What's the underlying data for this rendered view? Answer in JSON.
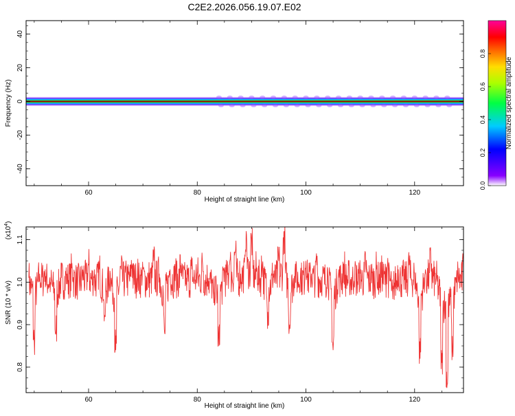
{
  "title": "C2E2.2026.056.19.07.E02",
  "chart_data": [
    {
      "type": "heatmap",
      "xlabel": "Height of straight line (km)",
      "ylabel": "Frequency (Hz)",
      "xlim": [
        48.5,
        129
      ],
      "ylim": [
        -50,
        48
      ],
      "xticks": [
        60,
        80,
        100,
        120
      ],
      "yticks": [
        -40,
        -20,
        0,
        20,
        40
      ],
      "xticklabels": [
        "60",
        "80",
        "100",
        "120"
      ],
      "yticklabels": [
        "-40",
        "-20",
        "0",
        "20",
        "40"
      ],
      "band_center_hz": 0,
      "colorbar": {
        "label": "Normalized spectral amplitude",
        "range": [
          0,
          1
        ],
        "ticks": [
          0.0,
          0.2,
          0.4,
          0.6,
          0.8
        ],
        "ticklabels": [
          "0.0",
          "0.2",
          "0.4",
          "0.6",
          "0.8"
        ]
      }
    },
    {
      "type": "line",
      "xlabel": "Height of straight line (km)",
      "ylabel": "SNR (10 * v/v)",
      "y_multiplier_label": "(x10",
      "y_multiplier_exp": "4",
      "y_multiplier_close": ")",
      "xlim": [
        48.5,
        129
      ],
      "ylim": [
        0.74,
        1.13
      ],
      "xticks": [
        60,
        80,
        100,
        120
      ],
      "yticks": [
        0.8,
        0.9,
        1.0,
        1.1
      ],
      "xticklabels": [
        "60",
        "80",
        "100",
        "120"
      ],
      "yticklabels": [
        "0.8",
        "0.9",
        "1.0",
        "1.1"
      ],
      "series": [
        {
          "color": "#ee3333",
          "x": [
            49,
            50,
            51,
            52,
            53,
            54,
            55,
            56,
            57,
            58,
            59,
            60,
            61,
            62,
            63,
            64,
            65,
            66,
            67,
            68,
            69,
            70,
            71,
            72,
            73,
            74,
            75,
            76,
            77,
            78,
            79,
            80,
            81,
            82,
            83,
            84,
            85,
            86,
            87,
            88,
            89,
            90,
            91,
            92,
            93,
            94,
            95,
            96,
            97,
            98,
            99,
            100,
            101,
            102,
            103,
            104,
            105,
            106,
            107,
            108,
            109,
            110,
            111,
            112,
            113,
            114,
            115,
            116,
            117,
            118,
            119,
            120,
            121,
            122,
            123,
            124,
            125,
            126,
            127,
            128,
            129
          ],
          "y": [
            1.01,
            0.86,
            1.02,
            1.03,
            1.0,
            0.88,
            1.01,
            1.02,
            1.03,
            1.0,
            1.02,
            1.04,
            1.01,
            1.03,
            0.92,
            1.02,
            0.84,
            1.03,
            1.01,
            1.04,
            1.02,
            1.03,
            1.01,
            1.05,
            1.02,
            0.88,
            1.03,
            1.02,
            1.04,
            1.01,
            1.03,
            1.02,
            1.04,
            1.01,
            0.97,
            0.85,
            1.03,
            1.05,
            1.07,
            1.02,
            1.12,
            1.1,
            1.03,
            1.04,
            0.93,
            1.02,
            1.05,
            1.12,
            0.9,
            1.03,
            1.02,
            1.05,
            1.02,
            1.04,
            1.01,
            1.03,
            0.84,
            1.02,
            1.04,
            1.01,
            1.03,
            1.02,
            1.04,
            1.01,
            1.03,
            1.02,
            1.04,
            0.96,
            1.03,
            1.01,
            1.04,
            1.02,
            0.82,
            1.03,
            1.05,
            1.01,
            0.81,
            0.76,
            0.84,
            1.02,
            1.03
          ]
        }
      ]
    }
  ]
}
